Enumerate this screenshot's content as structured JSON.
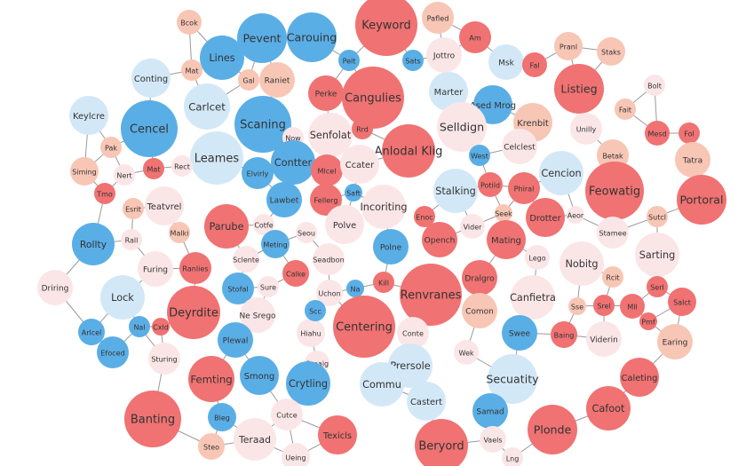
{
  "nodes": [
    "Keyword",
    "Pafled",
    "Bcok",
    "Pevent",
    "Carouing",
    "Jottro",
    "Am",
    "Msk",
    "Pranl",
    "Staks",
    "Bolt",
    "Lines",
    "Mat",
    "Conting",
    "Raniet",
    "Gal",
    "Pelt",
    "Sats",
    "Fal",
    "Listieg",
    "Cangulies",
    "Perke",
    "Marter",
    "Ased Mrog",
    "Keylcre",
    "Cencel",
    "Carlcet",
    "Scaning",
    "Senfolat",
    "Rrd",
    "Selldign",
    "Krenbit",
    "Unilly",
    "Fait",
    "Mesd",
    "Fol",
    "Pak",
    "Now",
    "Anlodal Klig",
    "Celclest",
    "Betak",
    "Leames",
    "Contter",
    "West",
    "Tatra",
    "Siming",
    "Nert",
    "Mat",
    "Rect",
    "Elvirly",
    "Mlcel",
    "Ccater",
    "Cencion",
    "Feowatig",
    "Portoral",
    "Tmo",
    "Esrit",
    "Teatvrel",
    "Lawbet",
    "Fellerg",
    "Saft",
    "Incoriting",
    "Stalking",
    "Potild",
    "Phiral",
    "Drotter",
    "Parube",
    "Cotfe",
    "Seou",
    "Polve",
    "Enoc",
    "Vider",
    "Seek",
    "Aeor",
    "Stamee",
    "Sutcl",
    "Rollty",
    "Rall",
    "Malki",
    "Meting",
    "Polne",
    "Opench",
    "Mating",
    "Lego",
    "Nobitg",
    "Sarting",
    "Seadbon",
    "Furing",
    "Ranlies",
    "Sclente",
    "Calke",
    "Dralgro",
    "Kill",
    "Renvranes",
    "Driring",
    "Lock",
    "Deyrdite",
    "Stofal",
    "Sure",
    "Uchon",
    "Na",
    "Canfietra",
    "Rcit",
    "Serl",
    "Salct",
    "Ne Srego",
    "Centering",
    "Comon",
    "Sse",
    "Srel",
    "Mll",
    "Pmf",
    "Arlcel",
    "Nal",
    "Cxld",
    "Hiahu",
    "Scc",
    "Conte",
    "Swee",
    "Baing",
    "Viderin",
    "Earing",
    "Plewal",
    "Efoced",
    "Sturing",
    "Wek",
    "Femting",
    "Smong",
    "Omaig",
    "Prersole",
    "Secuatity",
    "Caleting",
    "Crytling",
    "Commu",
    "Castert",
    "Banting",
    "Bleg",
    "Cutce",
    "Samad",
    "Plonde",
    "Cafoot",
    "Teraad",
    "Texicls",
    "Beryord",
    "Steo",
    "Ueing",
    "Vaels",
    "Lng"
  ]
}
